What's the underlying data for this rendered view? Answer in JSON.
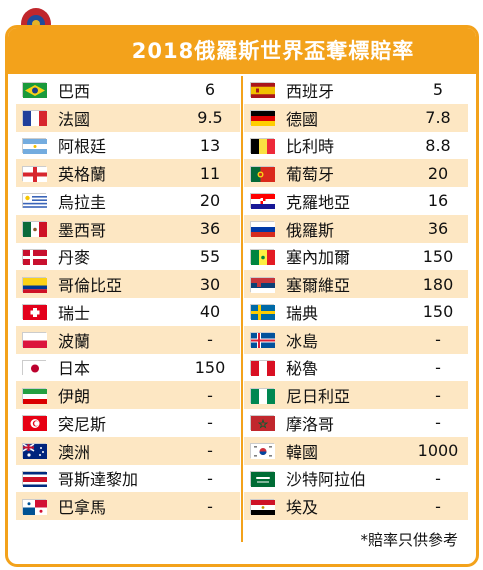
{
  "title": "2018俄羅斯世界盃奪標賠率",
  "note": "*賠率只供參考",
  "left": [
    {
      "name": "巴西",
      "odds": "6",
      "flag": "brazil"
    },
    {
      "name": "法國",
      "odds": "9.5",
      "flag": "france"
    },
    {
      "name": "阿根廷",
      "odds": "13",
      "flag": "argentina"
    },
    {
      "name": "英格蘭",
      "odds": "11",
      "flag": "england"
    },
    {
      "name": "烏拉圭",
      "odds": "20",
      "flag": "uruguay"
    },
    {
      "name": "墨西哥",
      "odds": "36",
      "flag": "mexico"
    },
    {
      "name": "丹麥",
      "odds": "55",
      "flag": "denmark"
    },
    {
      "name": "哥倫比亞",
      "odds": "30",
      "flag": "colombia"
    },
    {
      "name": "瑞士",
      "odds": "40",
      "flag": "switzerland"
    },
    {
      "name": "波蘭",
      "odds": "-",
      "flag": "poland"
    },
    {
      "name": "日本",
      "odds": "150",
      "flag": "japan"
    },
    {
      "name": "伊朗",
      "odds": "-",
      "flag": "iran"
    },
    {
      "name": "突尼斯",
      "odds": "-",
      "flag": "tunisia"
    },
    {
      "name": "澳洲",
      "odds": "-",
      "flag": "australia"
    },
    {
      "name": "哥斯達黎加",
      "odds": "-",
      "flag": "costa-rica"
    },
    {
      "name": "巴拿馬",
      "odds": "-",
      "flag": "panama"
    }
  ],
  "right": [
    {
      "name": "西班牙",
      "odds": "5",
      "flag": "spain"
    },
    {
      "name": "德國",
      "odds": "7.8",
      "flag": "germany"
    },
    {
      "name": "比利時",
      "odds": "8.8",
      "flag": "belgium"
    },
    {
      "name": "葡萄牙",
      "odds": "20",
      "flag": "portugal"
    },
    {
      "name": "克羅地亞",
      "odds": "16",
      "flag": "croatia"
    },
    {
      "name": "俄羅斯",
      "odds": "36",
      "flag": "russia"
    },
    {
      "name": "塞內加爾",
      "odds": "150",
      "flag": "senegal"
    },
    {
      "name": "塞爾維亞",
      "odds": "180",
      "flag": "serbia"
    },
    {
      "name": "瑞典",
      "odds": "150",
      "flag": "sweden"
    },
    {
      "name": "冰島",
      "odds": "-",
      "flag": "iceland"
    },
    {
      "name": "秘魯",
      "odds": "-",
      "flag": "peru"
    },
    {
      "name": "尼日利亞",
      "odds": "-",
      "flag": "nigeria"
    },
    {
      "name": "摩洛哥",
      "odds": "-",
      "flag": "morocco"
    },
    {
      "name": "韓國",
      "odds": "1000",
      "flag": "korea"
    },
    {
      "name": "沙特阿拉伯",
      "odds": "-",
      "flag": "saudi-arabia"
    },
    {
      "name": "埃及",
      "odds": "-",
      "flag": "egypt"
    }
  ],
  "colors": {
    "accent": "#f3a21b",
    "stripe": "#fde7c3"
  }
}
